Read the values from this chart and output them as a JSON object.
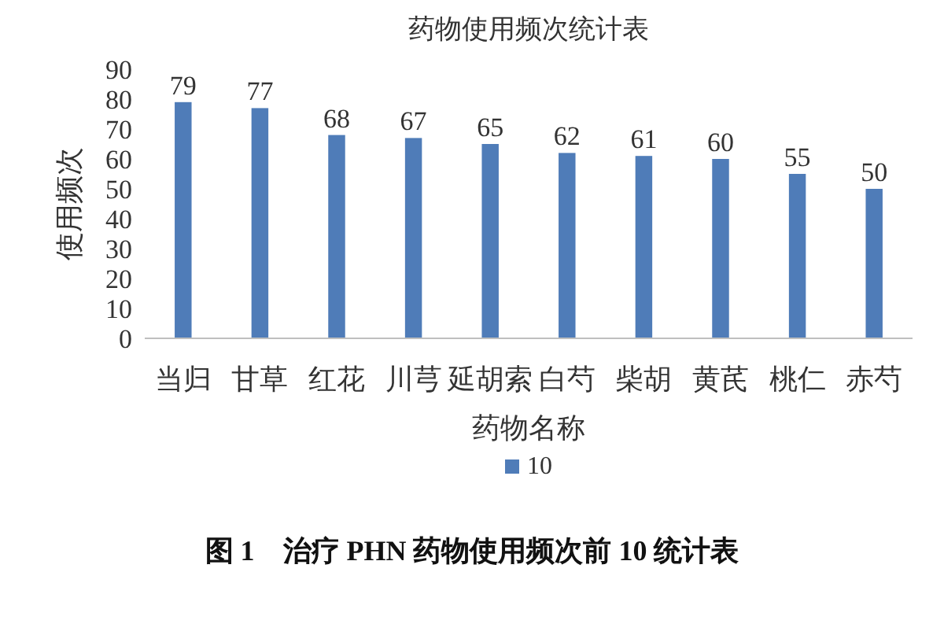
{
  "chart_data": {
    "type": "bar",
    "title": "药物使用频次统计表",
    "xlabel": "药物名称",
    "ylabel": "使用频次",
    "annotations": [
      "图 1　治疗 PHN 药物使用频次前 10 统计表"
    ],
    "categories": [
      "当归",
      "甘草",
      "红花",
      "川芎",
      "延胡索",
      "白芍",
      "柴胡",
      "黄芪",
      "桃仁",
      "赤芍"
    ],
    "series": [
      {
        "name": "10",
        "color": "#4f7cb8",
        "values": [
          79,
          77,
          68,
          67,
          65,
          62,
          61,
          60,
          55,
          50
        ]
      }
    ],
    "ylim": [
      0,
      90
    ],
    "yticks": [
      0,
      10,
      20,
      30,
      40,
      50,
      60,
      70,
      80,
      90
    ],
    "data_labels": true,
    "legend": "bottom",
    "grid": false
  }
}
